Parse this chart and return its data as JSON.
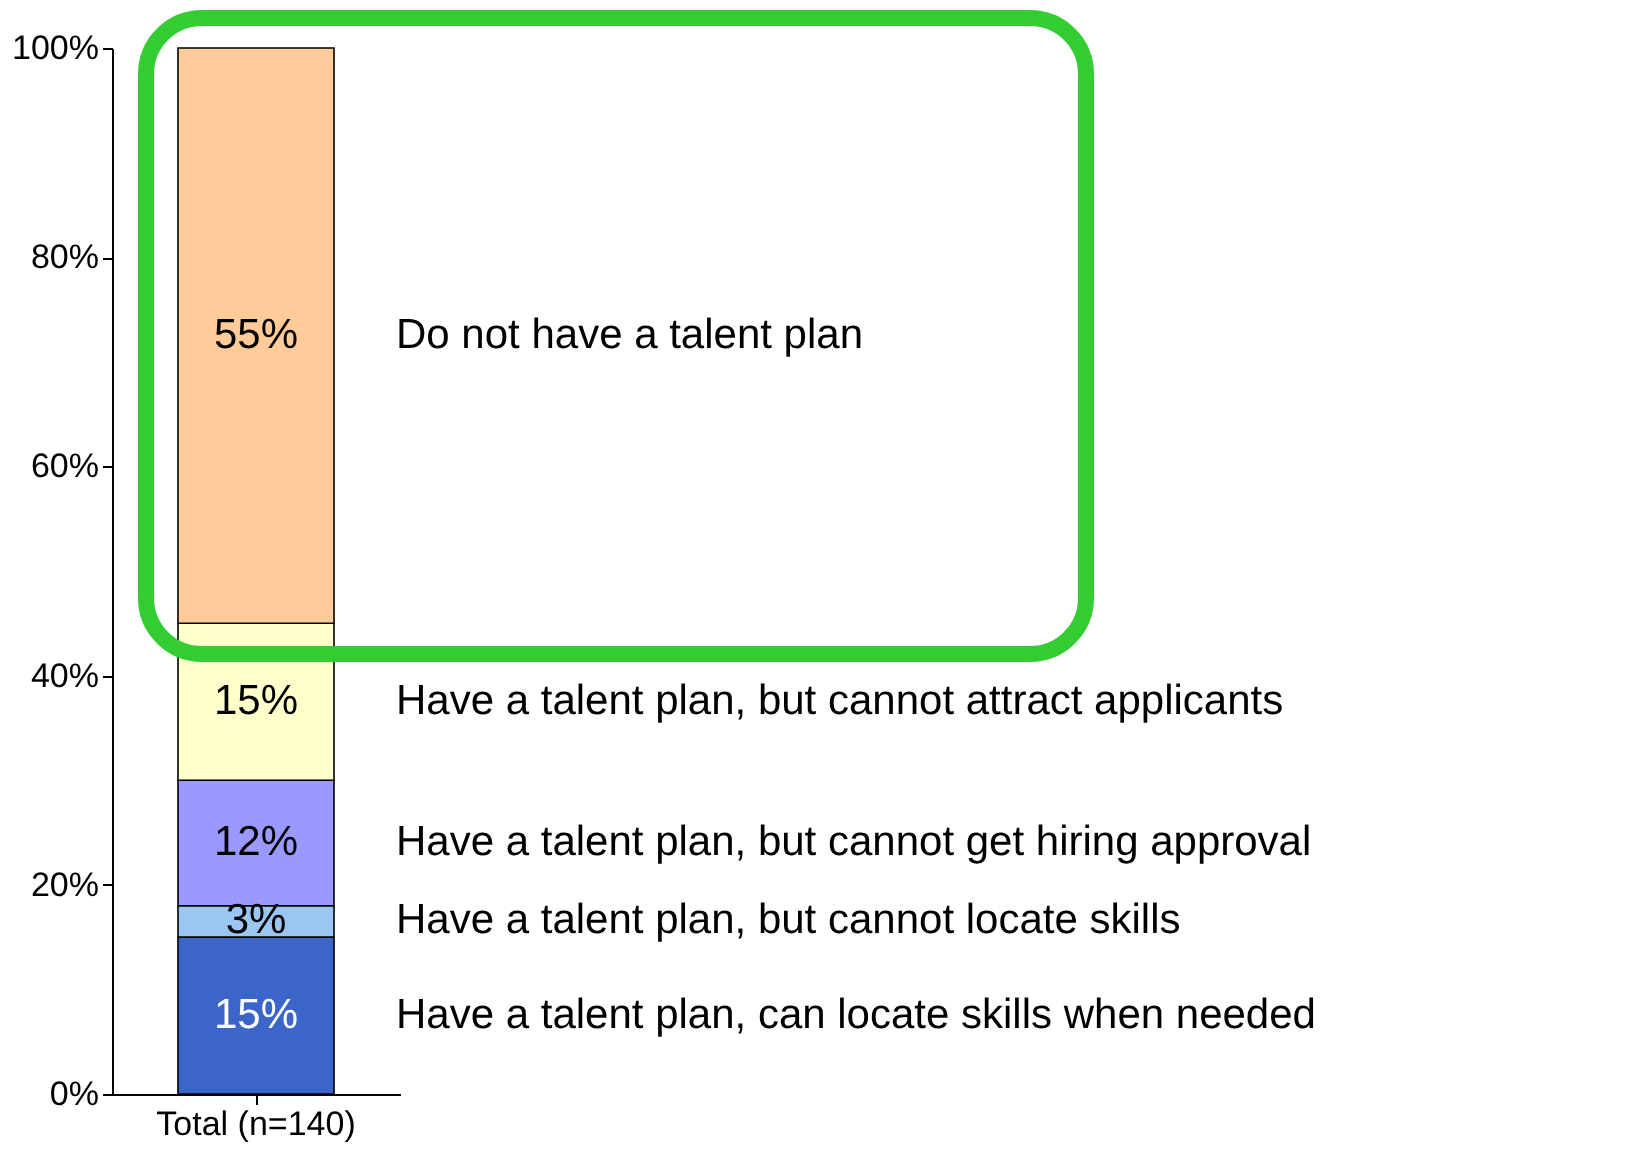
{
  "chart_data": {
    "type": "bar",
    "stacked": true,
    "categories": [
      "Total (n=140)"
    ],
    "series": [
      {
        "name": "Have a talent plan, can locate skills when needed",
        "color": "#3b65c9",
        "values": [
          15
        ],
        "value_labels": [
          "15%"
        ]
      },
      {
        "name": "Have a talent plan, but cannot locate skills",
        "color": "#9cc6f2",
        "values": [
          3
        ],
        "value_labels": [
          "3%"
        ]
      },
      {
        "name": "Have a talent plan, but cannot get hiring approval",
        "color": "#9999ff",
        "values": [
          12
        ],
        "value_labels": [
          "12%"
        ]
      },
      {
        "name": "Have a talent plan, but cannot attract applicants",
        "color": "#ffffcc",
        "values": [
          15
        ],
        "value_labels": [
          "15%"
        ]
      },
      {
        "name": "Do not have a talent plan",
        "color": "#ffcc99",
        "values": [
          55
        ],
        "value_labels": [
          "55%"
        ]
      }
    ],
    "ylim": [
      0,
      100
    ],
    "yticks": [
      {
        "value": 0,
        "label": "0%"
      },
      {
        "value": 20,
        "label": "20%"
      },
      {
        "value": 40,
        "label": "40%"
      },
      {
        "value": 60,
        "label": "60%"
      },
      {
        "value": 80,
        "label": "80%"
      },
      {
        "value": 100,
        "label": "100%"
      }
    ],
    "grid": false
  }
}
